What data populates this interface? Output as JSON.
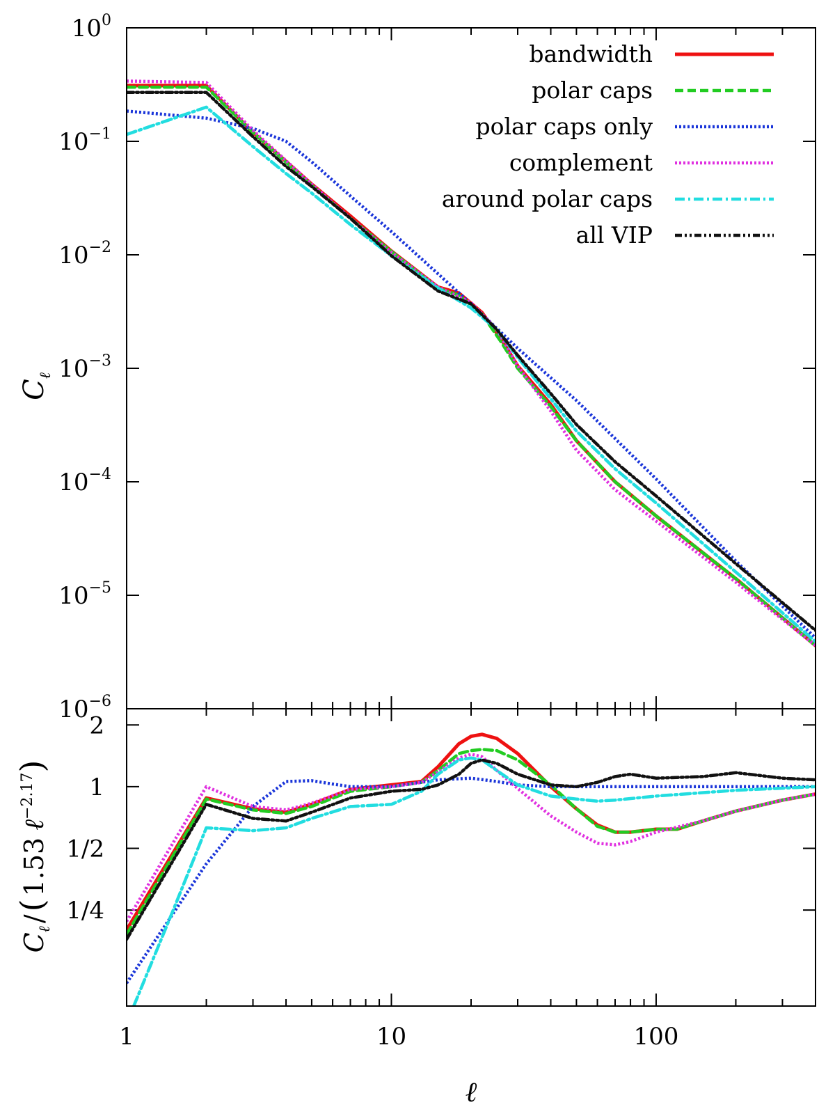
{
  "chart_data": [
    {
      "type": "line",
      "id": "top",
      "xscale": "log",
      "yscale": "log",
      "xlim": [
        1,
        400
      ],
      "ylim": [
        1e-06,
        1
      ],
      "xlabel": "",
      "ylabel": "C_ℓ",
      "ylabel_main": "C",
      "ylabel_sub": "ℓ",
      "yticks": [
        {
          "value": 1,
          "base": "10",
          "exp": "0"
        },
        {
          "value": 0.1,
          "base": "10",
          "exp": "−1"
        },
        {
          "value": 0.01,
          "base": "10",
          "exp": "−2"
        },
        {
          "value": 0.001,
          "base": "10",
          "exp": "−3"
        },
        {
          "value": 0.0001,
          "base": "10",
          "exp": "−4"
        },
        {
          "value": 1e-05,
          "base": "10",
          "exp": "−5"
        },
        {
          "value": 1e-06,
          "base": "10",
          "exp": "−6"
        }
      ],
      "legend_position": "top-right",
      "series": [
        {
          "name": "bandwidth",
          "color": "#ee1111",
          "dash": "solid",
          "x": [
            1,
            2,
            3,
            5,
            7,
            10,
            15,
            18,
            22,
            26,
            30,
            40,
            50,
            70,
            100,
            200,
            400
          ],
          "y": [
            0.31,
            0.31,
            0.12,
            0.042,
            0.022,
            0.0108,
            0.0052,
            0.0046,
            0.0031,
            0.0018,
            0.00105,
            0.00048,
            0.00023,
            0.0001,
            5e-05,
            1.4e-05,
            3.6e-06
          ]
        },
        {
          "name": "polar caps",
          "color": "#22cc22",
          "dash": "dashed",
          "x": [
            1,
            2,
            3,
            5,
            7,
            10,
            15,
            18,
            22,
            26,
            30,
            40,
            50,
            70,
            100,
            200,
            400
          ],
          "y": [
            0.3,
            0.3,
            0.12,
            0.041,
            0.021,
            0.0107,
            0.0051,
            0.0044,
            0.003,
            0.0017,
            0.001,
            0.00046,
            0.00023,
            0.0001,
            5e-05,
            1.4e-05,
            3.6e-06
          ]
        },
        {
          "name": "polar caps only",
          "color": "#1a35d9",
          "dash": "dotted",
          "x": [
            1,
            2,
            3,
            4,
            5,
            7,
            10,
            15,
            20,
            30,
            50,
            100,
            200,
            400
          ],
          "y": [
            0.185,
            0.16,
            0.13,
            0.1,
            0.066,
            0.033,
            0.016,
            0.0068,
            0.0037,
            0.0015,
            0.00052,
            0.000106,
            2e-05,
            4.2e-06
          ]
        },
        {
          "name": "complement",
          "color": "#e030e0",
          "dash": "dotted",
          "x": [
            1,
            2,
            3,
            5,
            7,
            10,
            15,
            20,
            25,
            30,
            40,
            50,
            70,
            100,
            200,
            400
          ],
          "y": [
            0.34,
            0.33,
            0.125,
            0.042,
            0.021,
            0.0105,
            0.0052,
            0.0038,
            0.0022,
            0.00105,
            0.00042,
            0.00019,
            8.5e-05,
            4.5e-05,
            1.3e-05,
            3.6e-06
          ]
        },
        {
          "name": "around polar caps",
          "color": "#22dde0",
          "dash": "dashdot",
          "x": [
            1,
            2,
            3,
            4,
            5,
            7,
            10,
            15,
            20,
            25,
            30,
            50,
            70,
            100,
            200,
            400
          ],
          "y": [
            0.115,
            0.2,
            0.09,
            0.052,
            0.035,
            0.0185,
            0.0098,
            0.0051,
            0.0034,
            0.0022,
            0.00125,
            0.00028,
            0.00013,
            6.5e-05,
            1.6e-05,
            3.9e-06
          ]
        },
        {
          "name": "all VIP",
          "color": "#111111",
          "dash": "dashdotdot",
          "x": [
            1,
            2,
            3,
            4,
            5,
            7,
            10,
            15,
            20,
            25,
            30,
            40,
            50,
            70,
            100,
            200,
            400
          ],
          "y": [
            0.27,
            0.27,
            0.11,
            0.06,
            0.04,
            0.021,
            0.0098,
            0.0048,
            0.0037,
            0.0022,
            0.0013,
            0.0006,
            0.00032,
            0.00015,
            7.5e-05,
            1.9e-05,
            4.9e-06
          ]
        }
      ]
    },
    {
      "type": "line",
      "id": "bottom",
      "xscale": "log",
      "yscale": "log2",
      "xlim": [
        1,
        400
      ],
      "ylim": [
        0.085,
        2.4
      ],
      "xlabel": "ℓ",
      "ylabel": "C_ℓ / (1.53 ℓ^−2.17)",
      "ylabel_parts": {
        "c": "C",
        "sub": "ℓ",
        "slash": "/",
        "lp": "(",
        "coef": "1.53",
        "ell": "ℓ",
        "exp": "−2.17",
        "rp": ")"
      },
      "xticks": [
        {
          "value": 1,
          "label": "1"
        },
        {
          "value": 10,
          "label": "10"
        },
        {
          "value": 100,
          "label": "100"
        }
      ],
      "yticks": [
        {
          "value": 2,
          "label": "2"
        },
        {
          "value": 1,
          "label": "1"
        },
        {
          "value": 0.5,
          "label": "1/2"
        },
        {
          "value": 0.25,
          "label": "1/4"
        }
      ],
      "series": [
        {
          "name": "bandwidth",
          "color": "#ee1111",
          "dash": "solid",
          "x": [
            1,
            2,
            3,
            4,
            5,
            7,
            10,
            13,
            15,
            18,
            20,
            22,
            25,
            30,
            40,
            50,
            60,
            70,
            80,
            100,
            120,
            150,
            200,
            300,
            400
          ],
          "y": [
            0.2,
            0.88,
            0.78,
            0.75,
            0.82,
            0.97,
            1.02,
            1.06,
            1.25,
            1.62,
            1.76,
            1.8,
            1.72,
            1.45,
            1.0,
            0.78,
            0.65,
            0.6,
            0.6,
            0.62,
            0.62,
            0.68,
            0.76,
            0.86,
            0.92
          ]
        },
        {
          "name": "polar caps",
          "color": "#22cc22",
          "dash": "dashed",
          "x": [
            1,
            2,
            3,
            4,
            5,
            7,
            10,
            13,
            15,
            18,
            20,
            22,
            25,
            30,
            40,
            50,
            60,
            70,
            80,
            100,
            120,
            150,
            200,
            300,
            400
          ],
          "y": [
            0.19,
            0.87,
            0.77,
            0.74,
            0.8,
            0.95,
            1.0,
            1.05,
            1.2,
            1.45,
            1.5,
            1.52,
            1.5,
            1.35,
            1.02,
            0.78,
            0.64,
            0.6,
            0.6,
            0.62,
            0.62,
            0.68,
            0.76,
            0.86,
            0.92
          ]
        },
        {
          "name": "polar caps only",
          "color": "#1a35d9",
          "dash": "dotted",
          "x": [
            1,
            2,
            3,
            4,
            5,
            6,
            7,
            10,
            15,
            20,
            25,
            30,
            40,
            50,
            60,
            100,
            200,
            400
          ],
          "y": [
            0.11,
            0.42,
            0.8,
            1.06,
            1.07,
            1.03,
            1.0,
            1.0,
            1.08,
            1.1,
            1.06,
            1.02,
            1.0,
            1.0,
            1.0,
            1.0,
            1.0,
            1.0
          ]
        },
        {
          "name": "complement",
          "color": "#e030e0",
          "dash": "dotted",
          "x": [
            1,
            2,
            3,
            4,
            5,
            7,
            10,
            13,
            15,
            18,
            20,
            22,
            25,
            30,
            40,
            50,
            60,
            70,
            80,
            100,
            150,
            200,
            300,
            400
          ],
          "y": [
            0.22,
            1.0,
            0.8,
            0.77,
            0.83,
            0.97,
            1.0,
            1.05,
            1.18,
            1.38,
            1.44,
            1.4,
            1.2,
            0.98,
            0.72,
            0.6,
            0.53,
            0.52,
            0.54,
            0.6,
            0.68,
            0.76,
            0.86,
            0.92
          ]
        },
        {
          "name": "around polar caps",
          "color": "#22dde0",
          "dash": "dashdot",
          "x": [
            1,
            1.5,
            2,
            3,
            4,
            5,
            7,
            10,
            13,
            15,
            18,
            20,
            22,
            25,
            30,
            40,
            50,
            60,
            70,
            100,
            200,
            400
          ],
          "y": [
            0.07,
            0.25,
            0.63,
            0.61,
            0.63,
            0.7,
            0.8,
            0.82,
            0.95,
            1.15,
            1.35,
            1.38,
            1.35,
            1.2,
            1.02,
            0.9,
            0.87,
            0.85,
            0.86,
            0.9,
            0.96,
            1.0
          ]
        },
        {
          "name": "all VIP",
          "color": "#111111",
          "dash": "dashdotdot",
          "x": [
            1,
            2,
            3,
            4,
            5,
            7,
            10,
            13,
            15,
            18,
            20,
            22,
            25,
            30,
            40,
            50,
            60,
            70,
            80,
            100,
            150,
            200,
            300,
            400
          ],
          "y": [
            0.18,
            0.82,
            0.7,
            0.68,
            0.75,
            0.88,
            0.95,
            0.97,
            1.02,
            1.15,
            1.3,
            1.35,
            1.3,
            1.15,
            1.02,
            1.0,
            1.05,
            1.12,
            1.15,
            1.1,
            1.12,
            1.17,
            1.1,
            1.08
          ]
        }
      ]
    }
  ]
}
